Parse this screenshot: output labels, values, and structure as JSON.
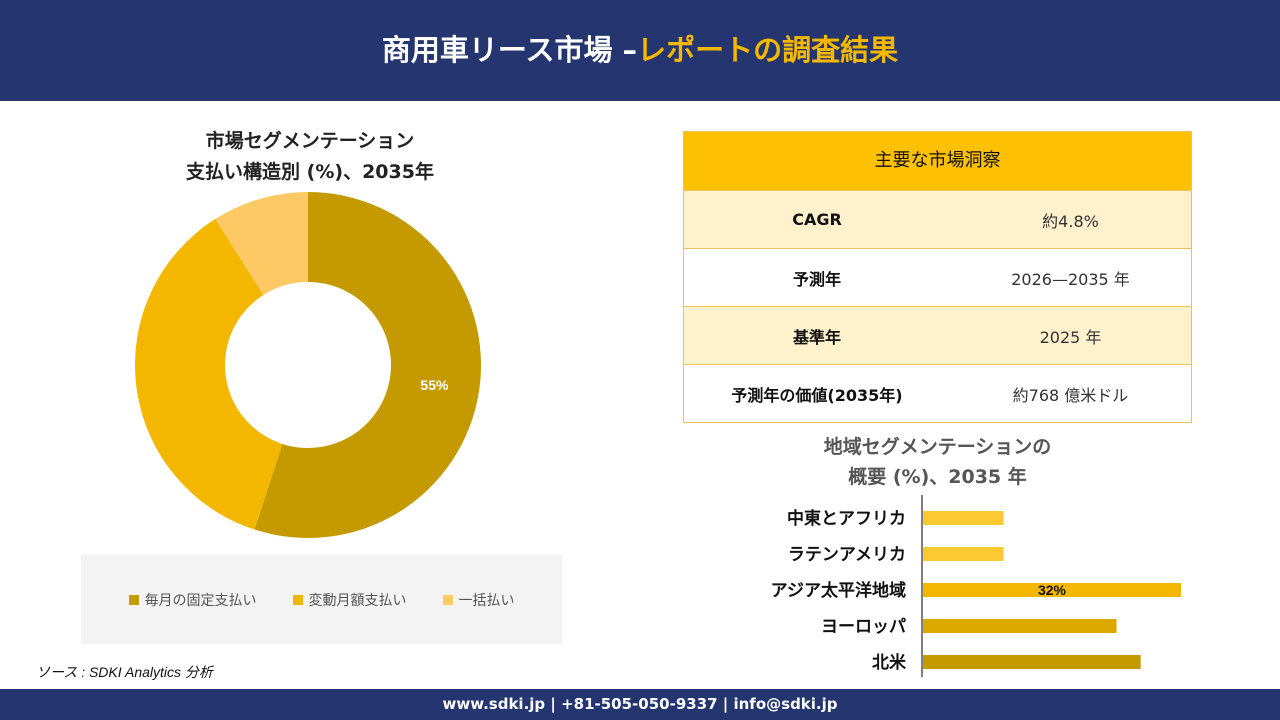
{
  "header": {
    "title_main": "商用車リース市場 –",
    "title_accent": "レポートの調査結果"
  },
  "donut": {
    "title_line1": "市場セグメンテーション",
    "title_line2": "支払い構造別 (%)、2035年"
  },
  "insights": {
    "heading": "主要な市場洞察",
    "rows": [
      {
        "label": "CAGR",
        "value": "約4.8%"
      },
      {
        "label": "予測年",
        "value": "2026—2035 年"
      },
      {
        "label": "基準年",
        "value": "2025 年"
      },
      {
        "label": "予測年の価値(2035年)",
        "value": "約768 億米ドル"
      }
    ]
  },
  "bars": {
    "title_line1": "地域セグメンテーションの",
    "title_line2": "概要 (%)、2035 年"
  },
  "source": "ソース : SDKI Analytics 分析",
  "footer": {
    "contact": "www.sdki.jp | +81-505-050-9337 | info@sdki.jp"
  },
  "chart_data": [
    {
      "type": "pie",
      "title": "市場セグメンテーション 支払い構造別 (%)、2035年",
      "categories": [
        "毎月の固定支払い",
        "変動月額支払い",
        "一括払い"
      ],
      "values": [
        55,
        36,
        9
      ],
      "colors": [
        "#c59a00",
        "#f3b700",
        "#fdc965"
      ],
      "data_labels": [
        "55%",
        "",
        ""
      ],
      "legend_position": "bottom"
    },
    {
      "type": "bar",
      "orientation": "horizontal",
      "title": "地域セグメンテーションの 概要 (%)、2035 年",
      "categories": [
        "中東とアフリカ",
        "ラテンアメリカ",
        "アジア太平洋地域",
        "ヨーロッパ",
        "北米"
      ],
      "values": [
        10,
        10,
        32,
        24,
        27
      ],
      "colors": [
        "#fdc932",
        "#fdc932",
        "#f3b700",
        "#dba800",
        "#c59a00"
      ],
      "data_labels": [
        "",
        "",
        "32%",
        "",
        ""
      ],
      "grid": false
    }
  ]
}
